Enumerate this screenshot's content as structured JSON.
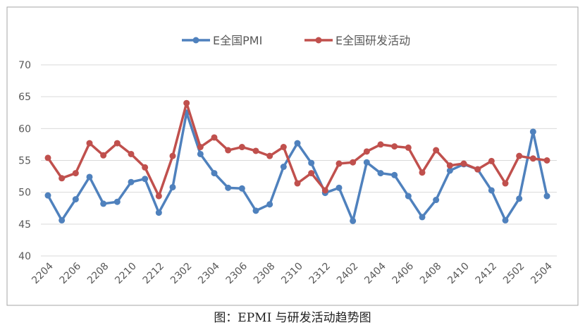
{
  "chart_data": {
    "type": "line",
    "caption": "图：EPMI 与研发活动趋势图",
    "categories": [
      "2204",
      null,
      "2206",
      null,
      "2208",
      null,
      "2210",
      null,
      "2212",
      null,
      "2302",
      null,
      "2304",
      null,
      "2306",
      null,
      "2308",
      null,
      "2310",
      null,
      "2312",
      null,
      "2402",
      null,
      "2404",
      null,
      "2406",
      null,
      "2408",
      null,
      "2410",
      null,
      "2412",
      null,
      "2502",
      null,
      "2504"
    ],
    "series": [
      {
        "name": "E全国PMI",
        "color": "#4f81bd",
        "values": [
          49.5,
          45.6,
          48.9,
          52.4,
          48.2,
          48.5,
          51.6,
          52.1,
          46.8,
          50.8,
          62.5,
          56.0,
          53.0,
          50.7,
          50.6,
          47.1,
          48.1,
          54.0,
          57.7,
          54.6,
          49.9,
          50.7,
          45.5,
          54.7,
          53.0,
          52.7,
          49.4,
          46.1,
          48.8,
          53.4,
          54.4,
          53.6,
          50.3,
          45.6,
          49.0,
          59.5,
          49.4
        ]
      },
      {
        "name": "E全国研发活动",
        "color": "#c0504d",
        "values": [
          55.4,
          52.2,
          53.0,
          57.7,
          55.8,
          57.7,
          56.0,
          53.9,
          49.4,
          55.7,
          64.0,
          57.1,
          58.6,
          56.6,
          57.1,
          56.5,
          55.7,
          57.1,
          51.4,
          53.0,
          50.3,
          54.5,
          54.7,
          56.4,
          57.5,
          57.2,
          57.0,
          53.1,
          56.6,
          54.2,
          54.5,
          53.6,
          54.9,
          51.4,
          55.7,
          55.3,
          55.0
        ]
      }
    ],
    "ylim": [
      40,
      70
    ],
    "yticks": [
      40,
      45,
      50,
      55,
      60,
      65,
      70
    ],
    "grid": true,
    "legend": "top"
  }
}
